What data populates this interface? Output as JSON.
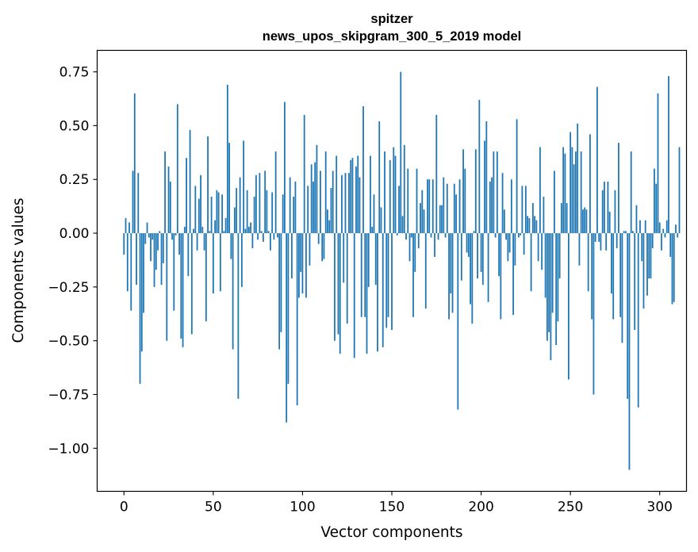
{
  "chart_data": {
    "type": "bar",
    "title": [
      "spitzer",
      "news_upos_skipgram_300_5_2019 model"
    ],
    "xlabel": "Vector components",
    "ylabel": "Components values",
    "xlim": [
      -15,
      315
    ],
    "ylim": [
      -1.2,
      0.85
    ],
    "xticks": [
      0,
      50,
      100,
      150,
      200,
      250,
      300
    ],
    "xtick_labels": [
      "0",
      "50",
      "100",
      "150",
      "200",
      "250",
      "300"
    ],
    "yticks": [
      -1.0,
      -0.75,
      -0.5,
      -0.25,
      0.0,
      0.25,
      0.5,
      0.75
    ],
    "ytick_labels": [
      "−1.00",
      "−0.75",
      "−0.50",
      "−0.25",
      "0.00",
      "0.25",
      "0.50",
      "0.75"
    ],
    "bar_color": "#1f77b4",
    "grid": false,
    "values": [
      -0.1,
      0.07,
      -0.27,
      0.05,
      -0.36,
      0.29,
      0.65,
      -0.24,
      0.28,
      -0.7,
      -0.55,
      -0.37,
      -0.05,
      0.05,
      -0.02,
      -0.13,
      -0.03,
      -0.25,
      -0.17,
      -0.08,
      0.01,
      -0.24,
      -0.14,
      0.38,
      -0.5,
      0.31,
      0.24,
      -0.03,
      -0.36,
      -0.01,
      0.6,
      -0.1,
      -0.49,
      -0.53,
      0.03,
      0.35,
      -0.2,
      0.48,
      -0.47,
      0.02,
      0.22,
      -0.08,
      0.16,
      0.27,
      0.03,
      -0.08,
      -0.41,
      0.45,
      0.01,
      0.17,
      -0.28,
      0.06,
      0.2,
      0.19,
      -0.27,
      0.18,
      0.01,
      0.07,
      0.69,
      0.42,
      -0.12,
      -0.54,
      0.12,
      0.21,
      -0.77,
      0.26,
      -0.25,
      0.43,
      0.02,
      0.2,
      0.03,
      0.05,
      -0.07,
      0.17,
      0.27,
      -0.03,
      0.28,
      0.01,
      -0.04,
      0.29,
      0.2,
      0.01,
      -0.08,
      0.19,
      -0.03,
      0.38,
      -0.02,
      -0.54,
      -0.46,
      0.18,
      0.61,
      -0.88,
      -0.7,
      0.26,
      -0.21,
      0.17,
      0.24,
      -0.8,
      -0.3,
      -0.18,
      -0.28,
      0.55,
      -0.3,
      0.22,
      -0.15,
      0.32,
      0.24,
      0.33,
      0.41,
      -0.05,
      0.29,
      -0.13,
      -0.12,
      0.38,
      0.11,
      0.06,
      0.21,
      0.29,
      -0.5,
      0.36,
      -0.47,
      -0.56,
      0.27,
      -0.23,
      0.28,
      -0.42,
      0.28,
      0.34,
      0.35,
      -0.58,
      0.31,
      0.36,
      0.26,
      -0.39,
      0.59,
      -0.39,
      -0.56,
      -0.25,
      0.36,
      0.03,
      0.18,
      -0.24,
      -0.55,
      0.52,
      0.12,
      -0.53,
      0.38,
      -0.44,
      -0.39,
      0.34,
      -0.45,
      0.4,
      0.36,
      -0.01,
      0.22,
      0.75,
      0.08,
      0.41,
      -0.03,
      0.3,
      -0.13,
      -0.02,
      -0.39,
      -0.18,
      0.3,
      -0.07,
      0.14,
      0.2,
      0.11,
      -0.35,
      0.25,
      0.25,
      -0.02,
      0.25,
      -0.11,
      0.55,
      -0.03,
      0.13,
      0.13,
      0.26,
      -0.02,
      0.23,
      -0.4,
      -0.28,
      -0.37,
      0.23,
      0.18,
      -0.82,
      0.25,
      -0.22,
      0.39,
      0.3,
      -0.09,
      -0.11,
      -0.33,
      -0.42,
      0.01,
      0.39,
      -0.21,
      0.62,
      -0.18,
      -0.24,
      0.43,
      0.52,
      -0.32,
      0.24,
      0.26,
      0.38,
      -0.02,
      0.38,
      -0.2,
      -0.4,
      0.28,
      0.11,
      -0.03,
      -0.13,
      -0.09,
      0.25,
      -0.38,
      -0.15,
      0.53,
      -0.02,
      -0.01,
      0.22,
      -0.1,
      0.22,
      0.08,
      0.07,
      -0.27,
      0.14,
      0.08,
      0.06,
      -0.13,
      0.4,
      -0.17,
      0.17,
      -0.3,
      -0.5,
      -0.46,
      -0.59,
      -0.37,
      0.29,
      -0.52,
      -0.41,
      -0.21,
      0.14,
      0.4,
      0.37,
      0.14,
      -0.68,
      0.47,
      0.4,
      0.32,
      0.38,
      0.51,
      -0.15,
      0.38,
      0.11,
      0.12,
      0.11,
      -0.27,
      0.46,
      -0.4,
      -0.75,
      -0.04,
      0.68,
      -0.04,
      -0.08,
      0.2,
      0.24,
      -0.08,
      0.24,
      0.1,
      -0.28,
      -0.4,
      0.2,
      -0.07,
      0.42,
      -0.39,
      -0.51,
      0.01,
      0.01,
      -0.77,
      -1.1,
      0.38,
      0.01,
      -0.45,
      0.13,
      -0.81,
      0.06,
      -0.13,
      -0.35,
      0.06,
      -0.29,
      -0.21,
      -0.21,
      -0.07,
      0.3,
      0.23,
      0.65,
      0.05,
      -0.08,
      0.02,
      -0.02,
      0.06,
      0.73,
      -0.11,
      -0.33,
      -0.32,
      0.04,
      -0.02,
      0.4
    ]
  }
}
